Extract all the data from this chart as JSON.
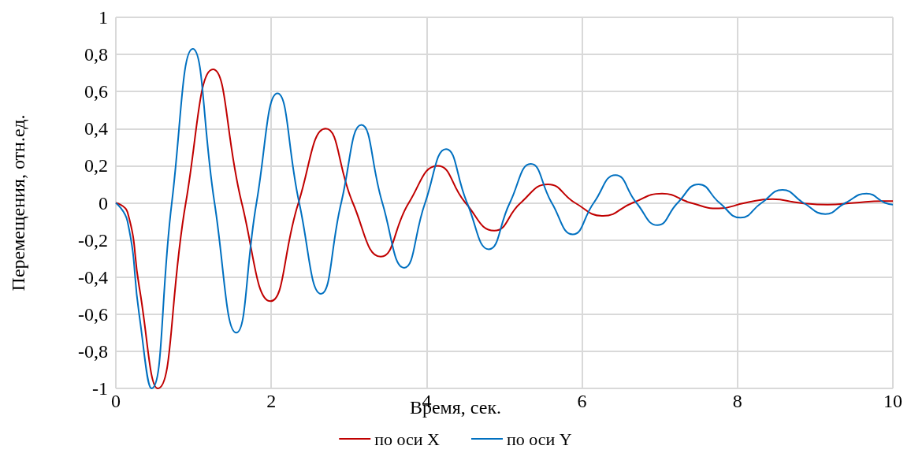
{
  "chart_data": {
    "type": "line",
    "xlabel": "Время, сек.",
    "ylabel": "Перемещения, отн.ед.",
    "xlim": [
      0,
      10
    ],
    "xticks": [
      0,
      2,
      4,
      6,
      8,
      10
    ],
    "ylim": [
      -1,
      1
    ],
    "yticks": [
      -1,
      {
        "value": -0.8,
        "label": "-0,8"
      },
      {
        "value": -0.6,
        "label": "-0,6"
      },
      {
        "value": -0.4,
        "label": "-0,4"
      },
      {
        "value": -0.2,
        "label": "-0,2"
      },
      0,
      {
        "value": 0.2,
        "label": "0,2"
      },
      {
        "value": 0.4,
        "label": "0,4"
      },
      {
        "value": 0.6,
        "label": "0,6"
      },
      {
        "value": 0.8,
        "label": "0,8"
      },
      1
    ],
    "grid": true,
    "legend": "bottom",
    "marker": "none",
    "line_style": "solid",
    "series": [
      {
        "name": "по оси X",
        "color": "#c00000",
        "x": [
          0,
          0.15,
          0.3,
          0.54,
          0.9,
          1.25,
          1.62,
          1.99,
          2.35,
          2.7,
          3.05,
          3.41,
          3.77,
          4.14,
          4.5,
          4.87,
          5.21,
          5.56,
          5.91,
          6.27,
          6.65,
          7.03,
          7.4,
          7.76,
          8.1,
          8.45,
          8.8,
          9.16,
          9.5,
          9.87,
          10
        ],
        "values": [
          0,
          -0.05,
          -0.45,
          -1,
          0,
          0.72,
          0,
          -0.53,
          0,
          0.4,
          0,
          -0.29,
          0,
          0.2,
          0,
          -0.15,
          0,
          0.1,
          0,
          -0.07,
          0,
          0.05,
          0,
          -0.03,
          0,
          0.02,
          0,
          -0.01,
          0,
          0.01,
          0.01
        ]
      },
      {
        "name": "по оси Y",
        "color": "#0070c0",
        "x": [
          0,
          0.15,
          0.3,
          0.46,
          0.72,
          0.99,
          1.27,
          1.55,
          1.81,
          2.08,
          2.36,
          2.64,
          2.9,
          3.16,
          3.43,
          3.71,
          3.98,
          4.25,
          4.52,
          4.8,
          5.07,
          5.34,
          5.61,
          5.88,
          6.15,
          6.43,
          6.7,
          6.97,
          7.23,
          7.5,
          7.77,
          8.04,
          8.31,
          8.58,
          8.85,
          9.13,
          9.39,
          9.66,
          9.9,
          10
        ],
        "values": [
          0,
          -0.1,
          -0.6,
          -1,
          0,
          0.83,
          0,
          -0.7,
          0,
          0.59,
          0,
          -0.49,
          0,
          0.42,
          0,
          -0.35,
          0,
          0.29,
          0,
          -0.25,
          0,
          0.21,
          0,
          -0.17,
          0,
          0.15,
          0,
          -0.12,
          0,
          0.1,
          0,
          -0.08,
          0,
          0.07,
          0,
          -0.06,
          0,
          0.05,
          0,
          -0.01
        ]
      }
    ]
  }
}
